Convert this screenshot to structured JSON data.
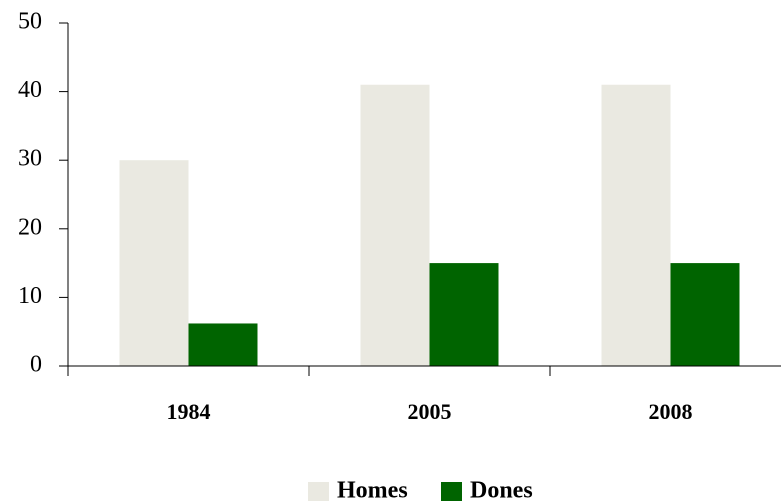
{
  "chart_data": {
    "type": "bar",
    "categories": [
      "1984",
      "2005",
      "2008"
    ],
    "series": [
      {
        "name": "Homes",
        "color": "#eae9e1",
        "values": [
          30,
          41,
          41
        ]
      },
      {
        "name": "Dones",
        "color": "#006400",
        "values": [
          6.2,
          15,
          15
        ]
      }
    ],
    "ylim": [
      0,
      50
    ],
    "yticks": [
      0,
      10,
      20,
      30,
      40,
      50
    ],
    "legend": "bottom"
  }
}
